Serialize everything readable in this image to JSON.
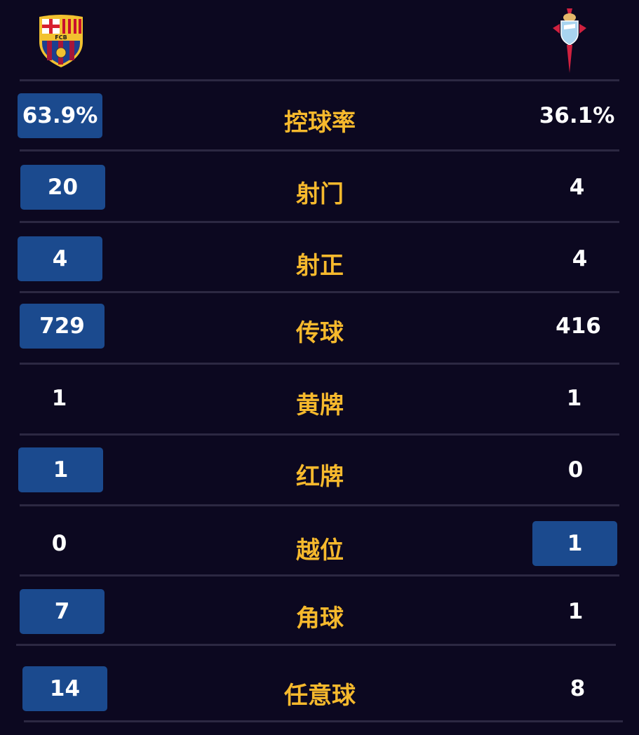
{
  "teams": {
    "home": {
      "crest": "fc-barcelona-crest-icon",
      "crest_text": "FCB"
    },
    "away": {
      "crest": "celta-vigo-crest-icon"
    }
  },
  "colors": {
    "background": "#0c0820",
    "highlight": "#1b4a8e",
    "label": "#f6b92d",
    "divider": "#2c2842"
  },
  "stats": [
    {
      "label": "控球率",
      "home": "63.9%",
      "away": "36.1%",
      "highlight": "home"
    },
    {
      "label": "射门",
      "home": "20",
      "away": "4",
      "highlight": "home"
    },
    {
      "label": "射正",
      "home": "4",
      "away": "4",
      "highlight": "home"
    },
    {
      "label": "传球",
      "home": "729",
      "away": "416",
      "highlight": "home"
    },
    {
      "label": "黄牌",
      "home": "1",
      "away": "1",
      "highlight": "none"
    },
    {
      "label": "红牌",
      "home": "1",
      "away": "0",
      "highlight": "home"
    },
    {
      "label": "越位",
      "home": "0",
      "away": "1",
      "highlight": "away"
    },
    {
      "label": "角球",
      "home": "7",
      "away": "1",
      "highlight": "home"
    },
    {
      "label": "任意球",
      "home": "14",
      "away": "8",
      "highlight": "home"
    }
  ]
}
